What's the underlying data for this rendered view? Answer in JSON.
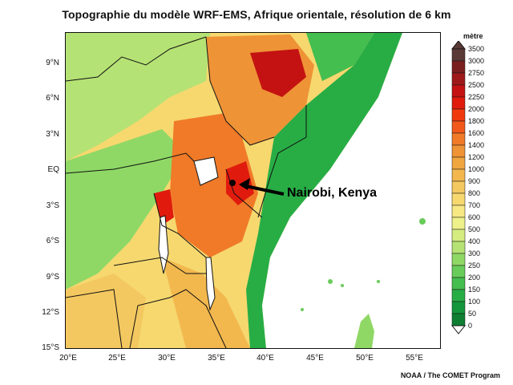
{
  "title": "Topographie du modèle WRF-EMS, Afrique orientale, résolution de 6 km",
  "map": {
    "lat_labels": [
      "9°N",
      "6°N",
      "3°N",
      "EQ",
      "3°S",
      "6°S",
      "9°S",
      "12°S",
      "15°S"
    ],
    "lon_labels": [
      "20°E",
      "25°E",
      "30°E",
      "35°E",
      "40°E",
      "45°E",
      "50°E",
      "55°E"
    ],
    "callout": "Nairobi, Kenya"
  },
  "legend": {
    "unit": "mètre",
    "levels": [
      "3500",
      "3000",
      "2750",
      "2500",
      "2250",
      "2000",
      "1800",
      "1600",
      "1400",
      "1200",
      "1000",
      "900",
      "800",
      "700",
      "600",
      "500",
      "400",
      "300",
      "250",
      "200",
      "150",
      "100",
      "50",
      "0"
    ],
    "colors": [
      "#5a3a36",
      "#7a1f1f",
      "#9e1a1a",
      "#c41212",
      "#e01b0e",
      "#f03a0e",
      "#f2581a",
      "#f07a28",
      "#ee9336",
      "#f0a640",
      "#f2b84e",
      "#f4c860",
      "#f6d86f",
      "#f7e883",
      "#eef08a",
      "#d5ec80",
      "#b5e274",
      "#8fd866",
      "#69cc5a",
      "#44be4f",
      "#28ad45",
      "#14963c",
      "#0e7f32",
      "#0b6b2b"
    ]
  },
  "credit": "NOAA / The COMET Program"
}
